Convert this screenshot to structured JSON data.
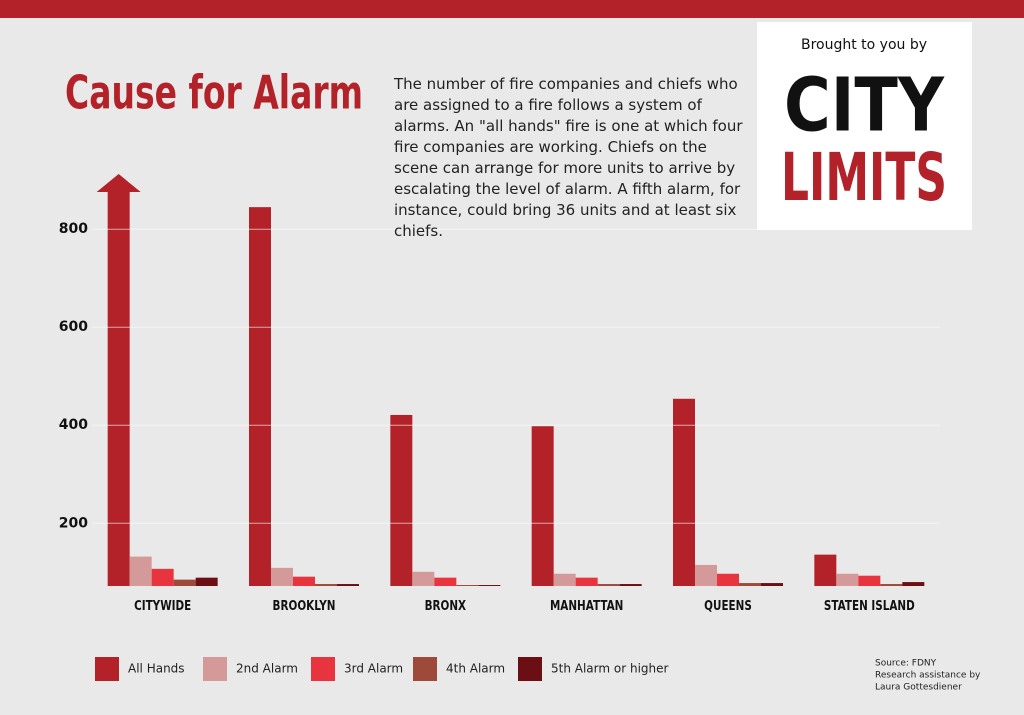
{
  "chart_data": {
    "type": "bar",
    "title": "Cause for Alarm",
    "description": "The number of fire companies and chiefs who are assigned to a fire follows a system of alarms. An \"all hands\" fire is one at which four fire companies are working. Chiefs on the scene can arrange for more units to arrive by escalating the level of alarm. A fifth alarm, for instance, could bring 36 units and at least six chiefs.",
    "categories": [
      "CITYWIDE",
      "BROOKLYN",
      "BRONX",
      "MANHATTAN",
      "QUEENS",
      "STATEN ISLAND"
    ],
    "series": [
      {
        "name": "All Hands",
        "color": "#b22228",
        "values": [
          920,
          845,
          421,
          398,
          454,
          136
        ]
      },
      {
        "name": "2nd Alarm",
        "color": "#d49a99",
        "values": [
          132,
          109,
          101,
          97,
          115,
          97
        ]
      },
      {
        "name": "3rd Alarm",
        "color": "#e8343e",
        "values": [
          107,
          91,
          89,
          89,
          97,
          93
        ]
      },
      {
        "name": "4th Alarm",
        "color": "#9e4a3a",
        "values": [
          85,
          76,
          74,
          76,
          78,
          76
        ]
      },
      {
        "name": "5th Alarm or higher",
        "color": "#6b0f14",
        "values": [
          89,
          76,
          74,
          76,
          78,
          80
        ]
      }
    ],
    "ylim": [
      72,
      880
    ],
    "yticks": [
      200,
      400,
      600,
      800
    ],
    "grid": true,
    "legend": "bottom"
  },
  "logo": {
    "tagline": "Brought to you by",
    "line1": "CITY",
    "line2": "LIMITS"
  },
  "source": [
    "Source: FDNY",
    "Research assistance by",
    "Laura Gottesdiener"
  ]
}
